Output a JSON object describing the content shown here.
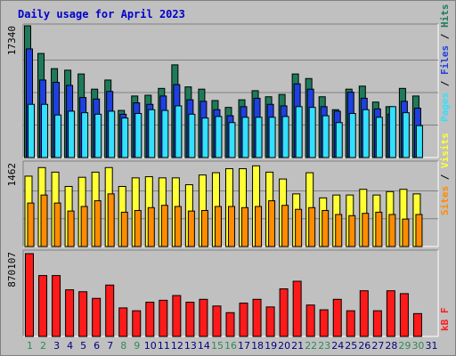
{
  "title": "Daily usage for April 2023",
  "colors": {
    "hits": "#1e7b5a",
    "files": "#1f40e0",
    "pages": "#33e0ff",
    "visits": "#ffff33",
    "sites": "#ff8c00",
    "kbytes": "#ff1a1a",
    "weekend_label": "#2e8b57",
    "weekday_label": "#000080"
  },
  "chart_data": [
    {
      "type": "bar",
      "panel": "hits-files-pages",
      "y_max_label": "17340",
      "ylim": [
        0,
        17340
      ],
      "right_label_parts": [
        "Pages",
        "Files",
        "Hits"
      ],
      "categories": [
        "1",
        "2",
        "3",
        "4",
        "5",
        "6",
        "7",
        "8",
        "9",
        "10",
        "11",
        "12",
        "13",
        "14",
        "15",
        "16",
        "17",
        "18",
        "19",
        "20",
        "21",
        "22",
        "23",
        "24",
        "25",
        "26",
        "27",
        "28",
        "29",
        "30",
        "31"
      ],
      "series": [
        {
          "name": "Hits",
          "values": [
            17340,
            13700,
            11700,
            11500,
            11000,
            9000,
            10200,
            6200,
            8100,
            8200,
            9100,
            12200,
            9300,
            9000,
            7500,
            6600,
            7600,
            8800,
            8000,
            8300,
            11000,
            10400,
            8000,
            6300,
            9000,
            9400,
            7300,
            6700,
            9100,
            8100,
            0
          ]
        },
        {
          "name": "Files",
          "values": [
            14300,
            10200,
            9900,
            9500,
            7900,
            7700,
            8700,
            5700,
            7200,
            7000,
            8100,
            9600,
            7600,
            7400,
            6300,
            5500,
            6700,
            7800,
            7000,
            6800,
            9700,
            9000,
            6700,
            6100,
            8600,
            7800,
            6400,
            5700,
            7400,
            6500,
            0
          ]
        },
        {
          "name": "Pages",
          "values": [
            7000,
            7000,
            5600,
            6100,
            5900,
            5700,
            6100,
            5200,
            5800,
            6300,
            6200,
            6800,
            5700,
            5200,
            5400,
            4600,
            5300,
            5300,
            5300,
            5400,
            6700,
            6600,
            5500,
            4600,
            5800,
            6300,
            5300,
            6700,
            5900,
            4200,
            0
          ]
        }
      ]
    },
    {
      "type": "bar",
      "panel": "visits-sites",
      "y_max_label": "1462",
      "ylim": [
        0,
        1462
      ],
      "right_label_parts": [
        "Sites",
        "Visits"
      ],
      "categories": [
        "1",
        "2",
        "3",
        "4",
        "5",
        "6",
        "7",
        "8",
        "9",
        "10",
        "11",
        "12",
        "13",
        "14",
        "15",
        "16",
        "17",
        "18",
        "19",
        "20",
        "21",
        "22",
        "23",
        "24",
        "25",
        "26",
        "27",
        "28",
        "29",
        "30",
        "31"
      ],
      "series": [
        {
          "name": "Visits",
          "values": [
            1230,
            1380,
            1300,
            1050,
            1210,
            1300,
            1380,
            1050,
            1200,
            1220,
            1200,
            1200,
            1080,
            1250,
            1290,
            1360,
            1360,
            1410,
            1300,
            1180,
            920,
            1290,
            850,
            900,
            900,
            1000,
            900,
            960,
            1000,
            920,
            0
          ]
        },
        {
          "name": "Sites",
          "values": [
            760,
            900,
            760,
            620,
            700,
            800,
            920,
            600,
            630,
            680,
            720,
            700,
            620,
            630,
            700,
            700,
            680,
            700,
            800,
            720,
            650,
            680,
            630,
            560,
            540,
            580,
            600,
            560,
            480,
            560,
            0
          ]
        }
      ]
    },
    {
      "type": "bar",
      "panel": "kbytes",
      "y_max_label": "870107",
      "ylim": [
        0,
        870107
      ],
      "right_label_parts": [
        "kB F"
      ],
      "categories": [
        "1",
        "2",
        "3",
        "4",
        "5",
        "6",
        "7",
        "8",
        "9",
        "10",
        "11",
        "12",
        "13",
        "14",
        "15",
        "16",
        "17",
        "18",
        "19",
        "20",
        "21",
        "22",
        "23",
        "24",
        "25",
        "26",
        "27",
        "28",
        "29",
        "30",
        "31"
      ],
      "series": [
        {
          "name": "kB F",
          "values": [
            870107,
            640000,
            640000,
            490000,
            470000,
            400000,
            540000,
            300000,
            270000,
            360000,
            380000,
            430000,
            360000,
            390000,
            320000,
            250000,
            350000,
            390000,
            310000,
            500000,
            580000,
            330000,
            280000,
            390000,
            270000,
            480000,
            270000,
            480000,
            450000,
            240000,
            0
          ]
        }
      ]
    }
  ],
  "day_labels": [
    "1",
    "2",
    "3",
    "4",
    "5",
    "6",
    "7",
    "8",
    "9",
    "10",
    "11",
    "12",
    "13",
    "14",
    "15",
    "16",
    "17",
    "18",
    "19",
    "20",
    "21",
    "22",
    "23",
    "24",
    "25",
    "26",
    "27",
    "28",
    "29",
    "30",
    "31"
  ],
  "weekend_days": [
    1,
    2,
    8,
    9,
    15,
    16,
    22,
    23,
    29,
    30
  ]
}
